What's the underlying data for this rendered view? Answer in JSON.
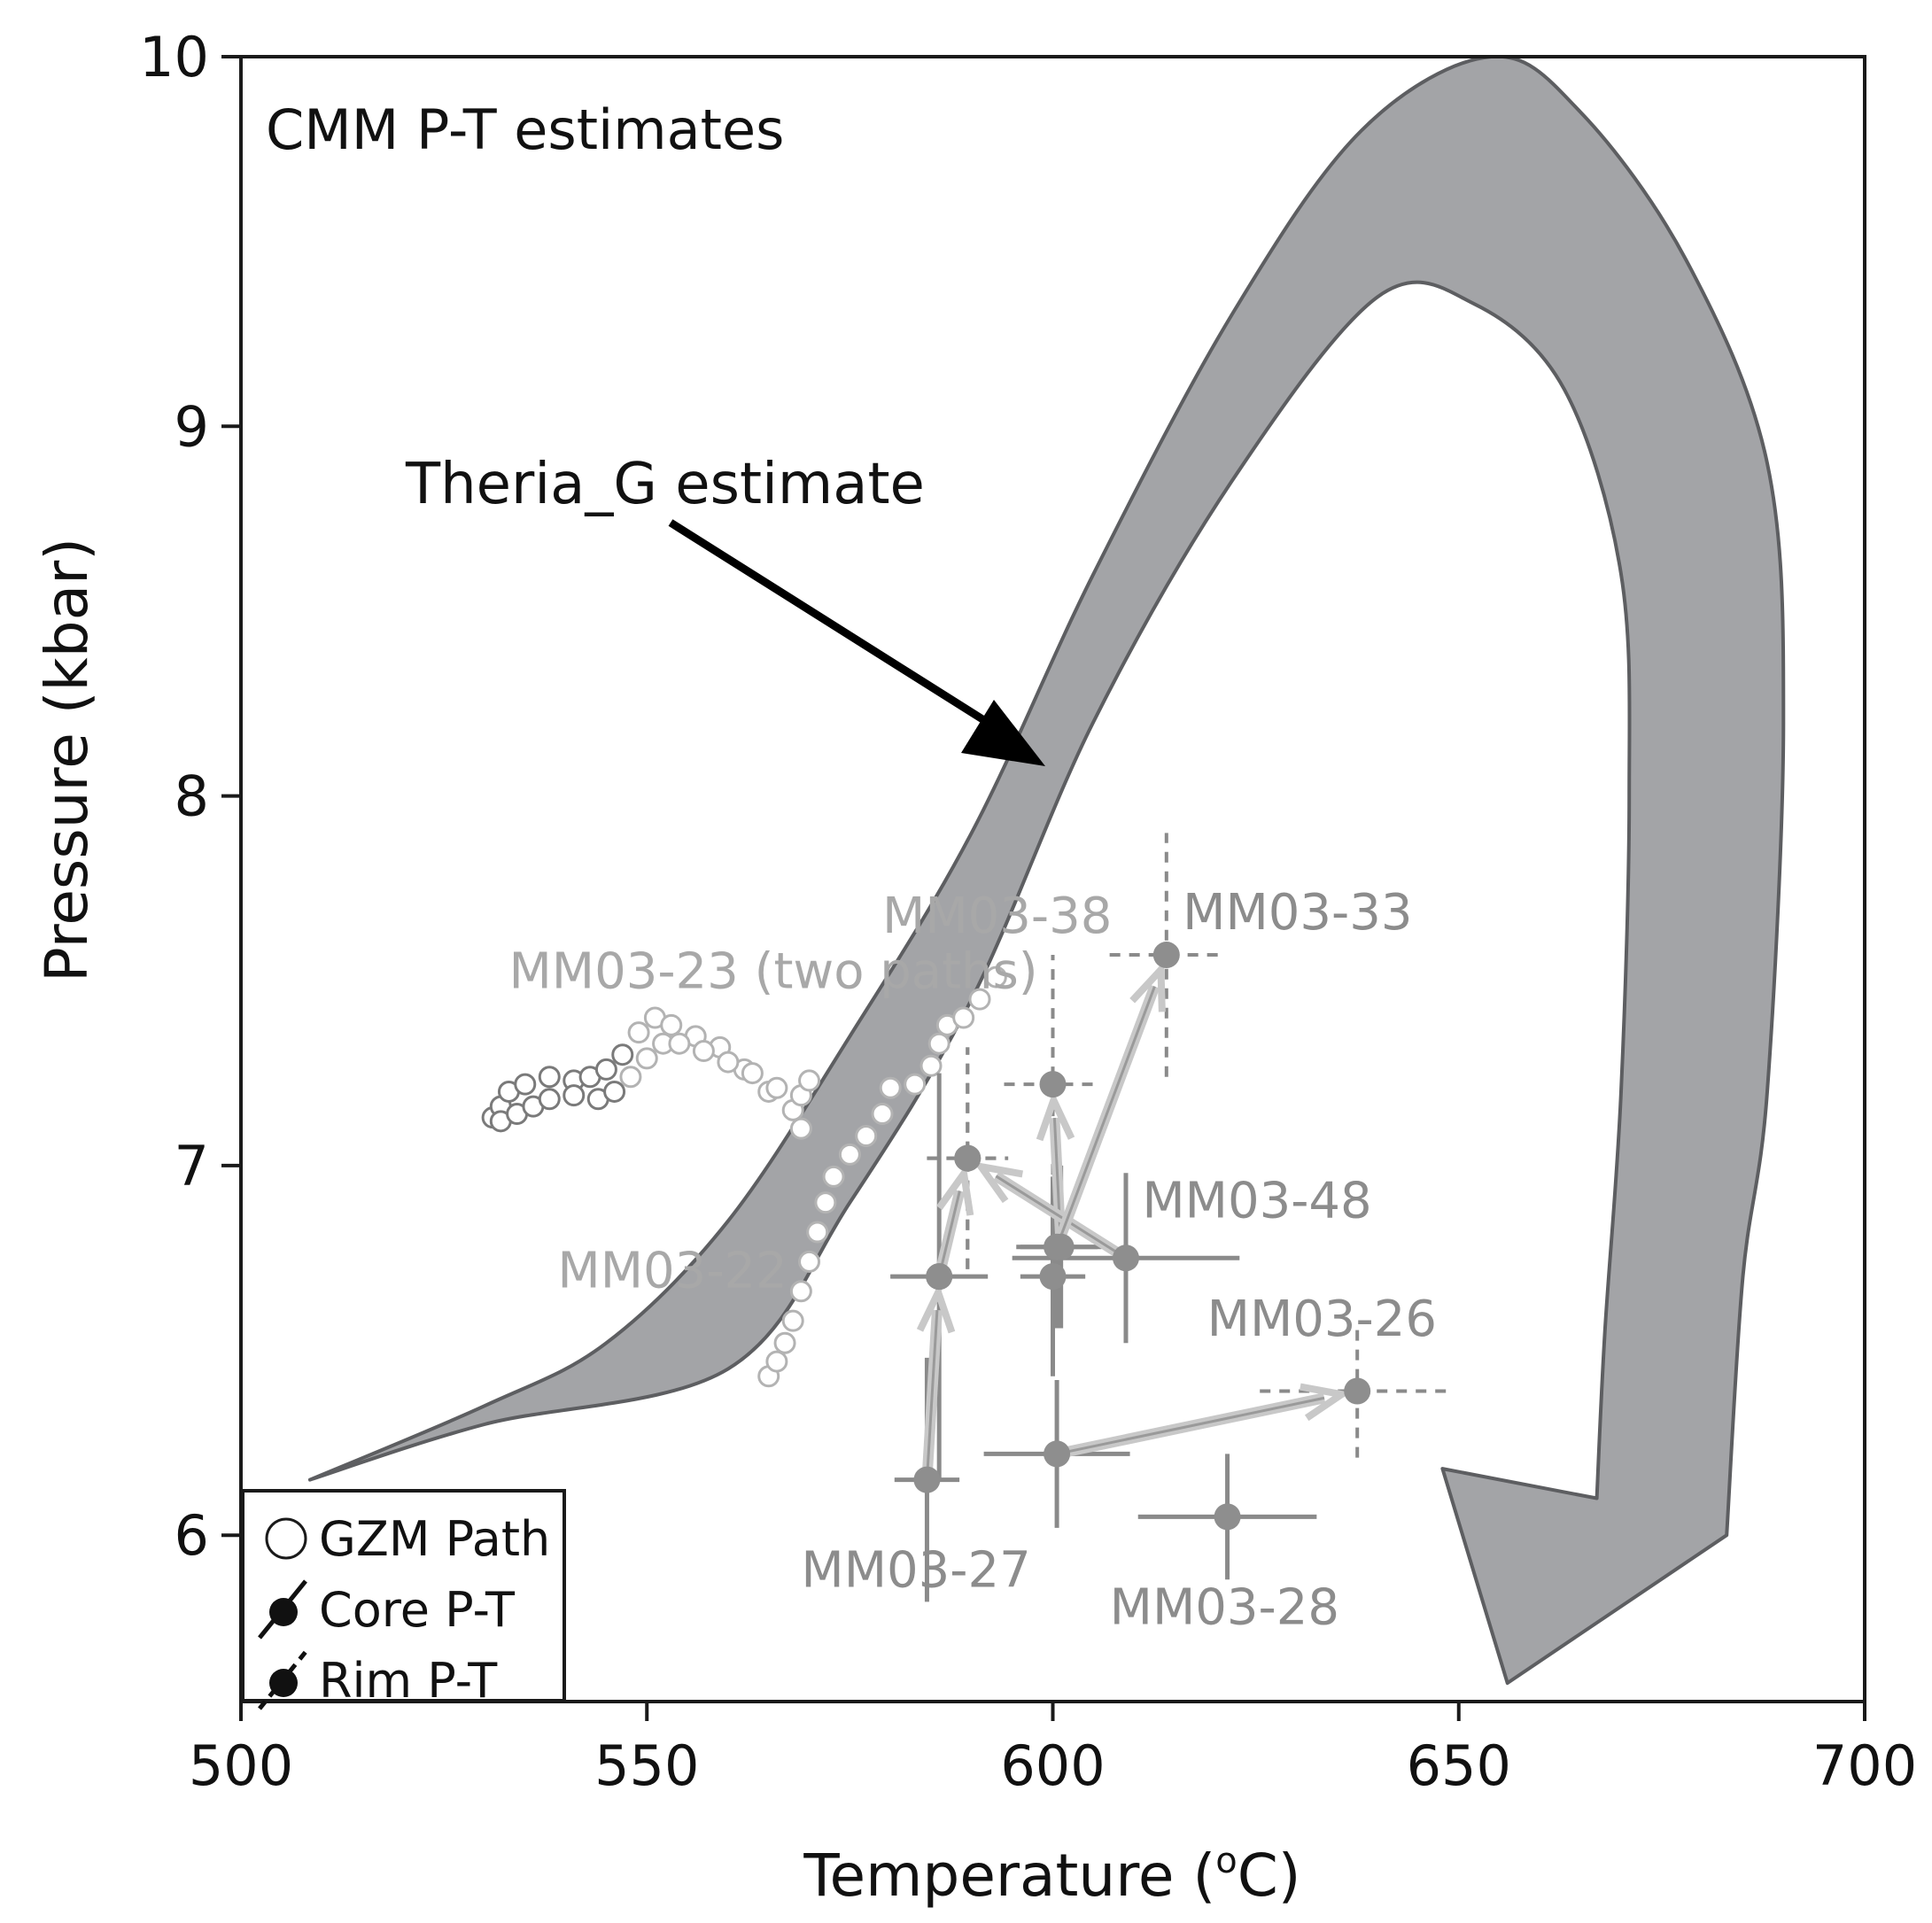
{
  "chart_data": {
    "type": "scatter",
    "title": "CMM P-T estimates",
    "xlabel": "Temperature (°C)",
    "xlabel_prefix": "Temperature (",
    "xlabel_sup": "o",
    "xlabel_suffix": "C)",
    "ylabel": "Pressure (kbar)",
    "xlim": [
      500,
      700
    ],
    "ylim": [
      5.55,
      10
    ],
    "xticks": [
      500,
      550,
      600,
      650,
      700
    ],
    "yticks": [
      6,
      7,
      8,
      9,
      10
    ],
    "grid": false,
    "annotation": {
      "text": "Theria_G estimate",
      "target": [
        599,
        8.12
      ]
    },
    "theriag_path": {
      "name": "Theria_G estimate",
      "color": "#a3a4a7",
      "outer_edge": [
        [
          508.5,
          6.15
        ],
        [
          530,
          6.35
        ],
        [
          545,
          6.52
        ],
        [
          560,
          6.85
        ],
        [
          575,
          7.35
        ],
        [
          590,
          7.9
        ],
        [
          605,
          8.6
        ],
        [
          622,
          9.3
        ],
        [
          638,
          9.8
        ],
        [
          654,
          10.0
        ],
        [
          665,
          9.85
        ],
        [
          678,
          9.45
        ],
        [
          688,
          8.9
        ],
        [
          690,
          8.2
        ],
        [
          688,
          7.2
        ],
        [
          685,
          6.7
        ],
        [
          683,
          6.0
        ]
      ],
      "inner_edge": [
        [
          508.5,
          6.15
        ],
        [
          530,
          6.3
        ],
        [
          560,
          6.45
        ],
        [
          575,
          6.9
        ],
        [
          590,
          7.45
        ],
        [
          605,
          8.2
        ],
        [
          622,
          8.85
        ],
        [
          640,
          9.35
        ],
        [
          652,
          9.33
        ],
        [
          663,
          9.1
        ],
        [
          670,
          8.6
        ],
        [
          671,
          8.0
        ],
        [
          670,
          7.2
        ],
        [
          668,
          6.55
        ],
        [
          667,
          6.1
        ]
      ],
      "arrow_head": [
        [
          667,
          6.1
        ],
        [
          648,
          6.18
        ],
        [
          656,
          5.6
        ],
        [
          683,
          6.0
        ]
      ]
    },
    "gzm_paths": [
      {
        "name": "MM03-23 path A",
        "points": [
          [
            531,
            7.13
          ],
          [
            532,
            7.16
          ],
          [
            533,
            7.2
          ],
          [
            535,
            7.22
          ],
          [
            538,
            7.24
          ],
          [
            541,
            7.23
          ],
          [
            543,
            7.24
          ],
          [
            545,
            7.26
          ],
          [
            547,
            7.3
          ],
          [
            549,
            7.36
          ],
          [
            551,
            7.4
          ],
          [
            553,
            7.38
          ],
          [
            556,
            7.35
          ],
          [
            559,
            7.32
          ],
          [
            562,
            7.26
          ],
          [
            565,
            7.2
          ],
          [
            568,
            7.15
          ],
          [
            569,
            7.1
          ]
        ]
      },
      {
        "name": "MM03-23 path B",
        "points": [
          [
            532,
            7.12
          ],
          [
            534,
            7.14
          ],
          [
            536,
            7.16
          ],
          [
            538,
            7.18
          ],
          [
            541,
            7.19
          ],
          [
            544,
            7.18
          ],
          [
            546,
            7.2
          ],
          [
            548,
            7.24
          ],
          [
            550,
            7.29
          ],
          [
            552,
            7.33
          ],
          [
            554,
            7.33
          ],
          [
            557,
            7.31
          ],
          [
            560,
            7.28
          ],
          [
            563,
            7.25
          ],
          [
            566,
            7.21
          ],
          [
            569,
            7.19
          ],
          [
            570,
            7.23
          ]
        ]
      },
      {
        "name": "MM03-22",
        "points": [
          [
            565,
            6.43
          ],
          [
            566,
            6.47
          ],
          [
            567,
            6.52
          ],
          [
            568,
            6.58
          ],
          [
            569,
            6.66
          ],
          [
            570,
            6.74
          ],
          [
            571,
            6.82
          ],
          [
            572,
            6.9
          ],
          [
            573,
            6.97
          ],
          [
            575,
            7.03
          ],
          [
            577,
            7.08
          ],
          [
            579,
            7.14
          ],
          [
            580,
            7.21
          ],
          [
            583,
            7.22
          ],
          [
            585,
            7.27
          ],
          [
            586,
            7.33
          ],
          [
            587,
            7.38
          ],
          [
            589,
            7.4
          ],
          [
            591,
            7.45
          ],
          [
            593,
            7.51
          ]
        ]
      }
    ],
    "samples": [
      {
        "name": "MM03-27",
        "core": [
          584.5,
          6.15
        ],
        "core_xerr": 4,
        "core_yerr": 0.33,
        "rim": [
          586,
          6.7
        ],
        "rim_xerr": 6,
        "rim_yerr": 0.55
      },
      {
        "name": "MM03-22",
        "core": [
          586,
          6.7
        ],
        "core_xerr": 6,
        "core_yerr": 0.55,
        "rim": [
          589.5,
          7.02
        ],
        "rim_xerr": 5,
        "rim_yerr": 0.3
      },
      {
        "name": "MM03-38",
        "core": [
          601,
          6.78
        ],
        "core_xerr": 5,
        "core_yerr": 0.22,
        "rim": [
          600,
          7.22
        ],
        "rim_xerr": 6,
        "rim_yerr": 0.35
      },
      {
        "name": "MM03-48",
        "core": [
          609,
          6.75
        ],
        "core_xerr": 14,
        "core_yerr": 0.23,
        "rim": [
          589.5,
          7.02
        ],
        "rim_xerr": 5,
        "rim_yerr": 0.3
      },
      {
        "name": "MM03-33",
        "core": [
          600.5,
          6.78
        ],
        "core_xerr": 5,
        "core_yerr": 0.22,
        "rim": [
          614,
          7.57
        ],
        "rim_xerr": 7,
        "rim_yerr": 0.33
      },
      {
        "name": "MM03-26",
        "core": [
          600.5,
          6.22
        ],
        "core_xerr": 9,
        "core_yerr": 0.2,
        "rim": [
          637.5,
          6.39
        ],
        "rim_xerr": 12,
        "rim_yerr": 0.18
      },
      {
        "name": "MM03-28",
        "core": [
          621.5,
          6.05
        ],
        "core_xerr": 11,
        "core_yerr": 0.17,
        "rim": null
      },
      {
        "name": "MM03-38 rim2",
        "core": [
          600,
          6.7
        ],
        "core_xerr": 4,
        "core_yerr": 0.27,
        "rim": null
      }
    ],
    "sample_labels": [
      {
        "text": "MM03-23 (two paths)",
        "x": 533,
        "y": 7.48,
        "tone": "light"
      },
      {
        "text": "MM03-38",
        "x": 579,
        "y": 7.63,
        "tone": "light"
      },
      {
        "text": "MM03-33",
        "x": 616,
        "y": 7.64,
        "tone": "dark"
      },
      {
        "text": "MM03-48",
        "x": 611,
        "y": 6.86,
        "tone": "dark"
      },
      {
        "text": "MM03-22",
        "x": 539,
        "y": 6.67,
        "tone": "light"
      },
      {
        "text": "MM03-26",
        "x": 619,
        "y": 6.54,
        "tone": "dark"
      },
      {
        "text": "MM03-27",
        "x": 569,
        "y": 5.86,
        "tone": "dark"
      },
      {
        "text": "MM03-28",
        "x": 607,
        "y": 5.76,
        "tone": "dark"
      }
    ],
    "legend": {
      "position": "bottom-left",
      "entries": [
        {
          "label": "GZM Path",
          "symbol": "open-circle"
        },
        {
          "label": "Core P-T",
          "symbol": "filled-circle-solid"
        },
        {
          "label": "Rim P-T",
          "symbol": "filled-circle-dashed"
        }
      ]
    }
  }
}
